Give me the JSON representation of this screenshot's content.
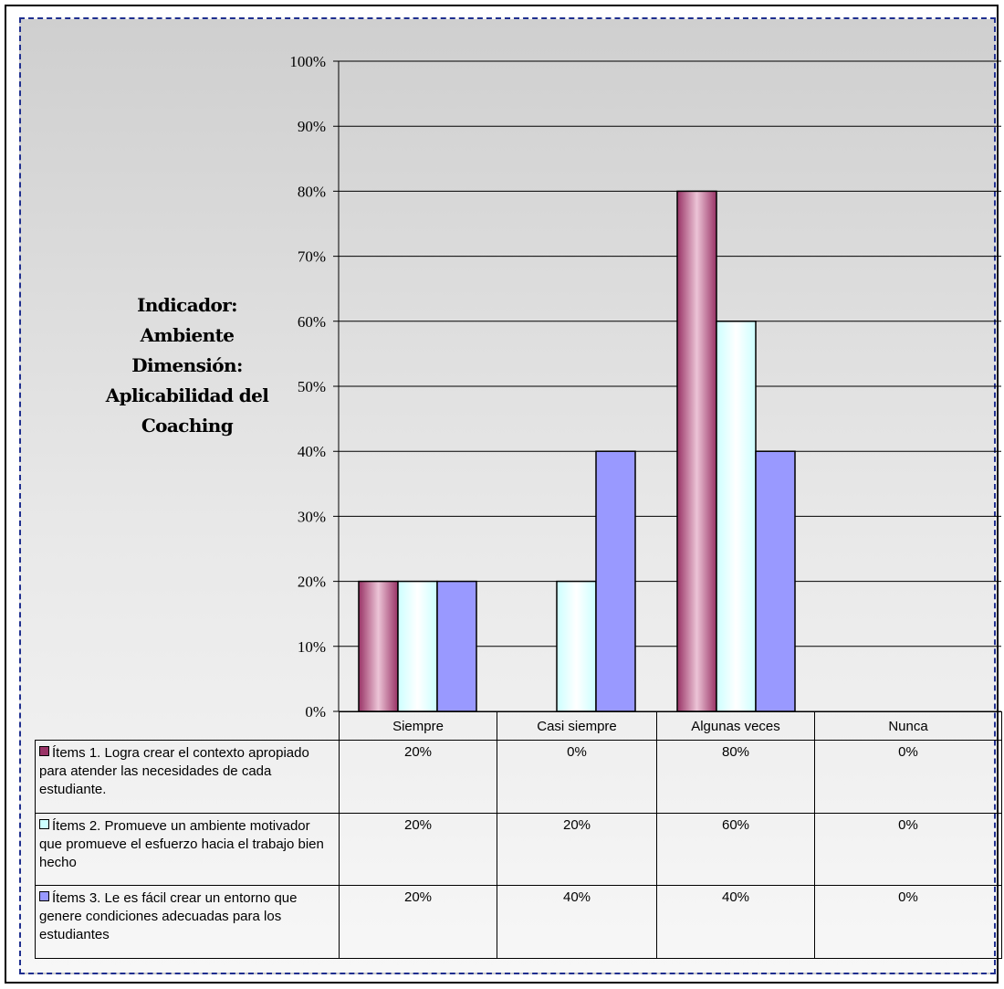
{
  "side_title_lines": [
    "Indicador:",
    "Ambiente",
    "Dimensión:",
    "Aplicabilidad del",
    "Coaching"
  ],
  "chart_data": {
    "type": "bar",
    "categories": [
      "Siempre",
      "Casi siempre",
      "Algunas veces",
      "Nunca"
    ],
    "series": [
      {
        "name": "Ítems 1. Logra crear el contexto apropiado para atender las necesidades de cada estudiante.",
        "values": [
          20,
          0,
          80,
          0
        ],
        "color": "#993366",
        "fill_light": "#ecc4d6"
      },
      {
        "name": "Ítems 2. Promueve un ambiente motivador que promueve el esfuerzo hacia el trabajo bien hecho",
        "values": [
          20,
          20,
          60,
          0
        ],
        "color": "#ccffff",
        "fill_light": "#ffffff"
      },
      {
        "name": "Ítems 3. Le es fácil crear un entorno que genere condiciones adecuadas para los estudiantes",
        "values": [
          20,
          40,
          40,
          0
        ],
        "color": "#9999ff",
        "fill_light": "#9999ff"
      }
    ],
    "ylim": [
      0,
      100
    ],
    "yticks": [
      "0%",
      "10%",
      "20%",
      "30%",
      "40%",
      "50%",
      "60%",
      "70%",
      "80%",
      "90%",
      "100%"
    ],
    "grid": true,
    "data_table": true
  },
  "table": {
    "rows": [
      {
        "label": "Ítems 1. Logra crear el contexto apropiado para atender las necesidades de cada estudiante.",
        "values": [
          "20%",
          "0%",
          "80%",
          "0%"
        ]
      },
      {
        "label": "Ítems 2. Promueve un ambiente motivador que promueve el esfuerzo hacia el trabajo bien hecho",
        "values": [
          "20%",
          "20%",
          "60%",
          "0%"
        ]
      },
      {
        "label": "Ítems 3. Le es fácil crear un entorno que genere condiciones adecuadas para los estudiantes",
        "values": [
          "20%",
          "40%",
          "40%",
          "0%"
        ]
      }
    ]
  }
}
